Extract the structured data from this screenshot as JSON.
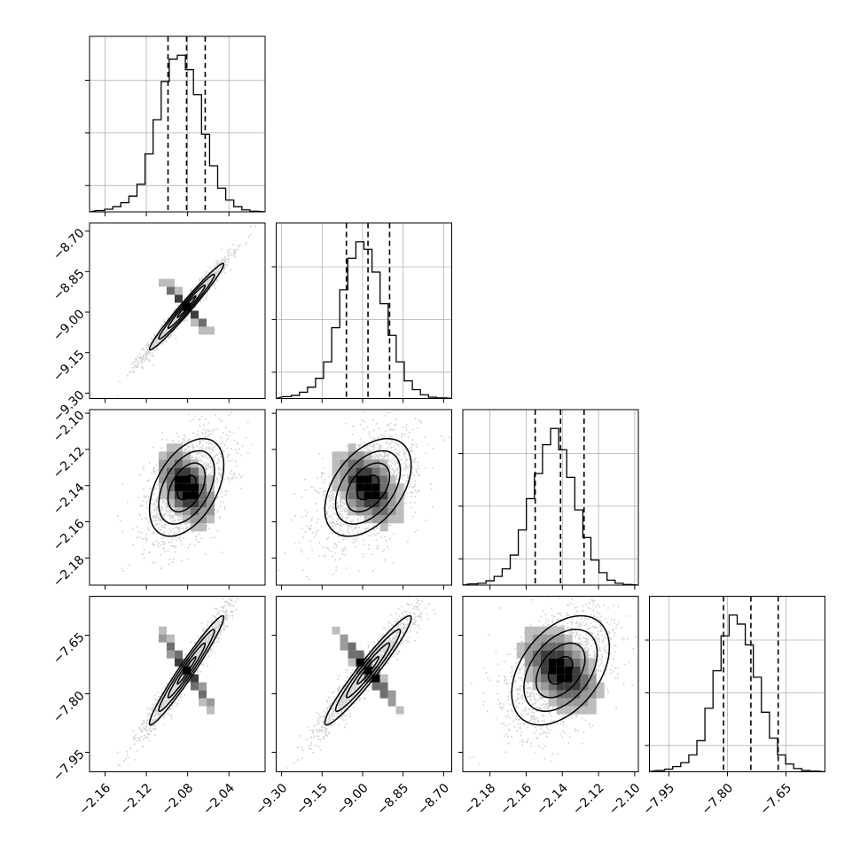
{
  "chart_data": {
    "type": "corner",
    "parameters": [
      {
        "ticks": [
          -2.16,
          -2.12,
          -2.08,
          -2.04
        ],
        "tick_labels": [
          "−2.16",
          "−2.12",
          "−2.08",
          "−2.04"
        ],
        "range": [
          -2.175,
          -2.005
        ],
        "median": -2.081,
        "q16": -2.099,
        "q84": -2.063,
        "sigma": 0.018
      },
      {
        "ticks": [
          -9.3,
          -9.15,
          -9.0,
          -8.85,
          -8.7
        ],
        "tick_labels": [
          "−9.30",
          "−9.15",
          "−9.00",
          "−8.85",
          "−8.70"
        ],
        "range": [
          -9.32,
          -8.67
        ],
        "median": -8.98,
        "q16": -9.06,
        "q84": -8.9,
        "sigma": 0.08
      },
      {
        "ticks": [
          -2.18,
          -2.16,
          -2.14,
          -2.12,
          -2.1
        ],
        "tick_labels": [
          "−2.18",
          "−2.16",
          "−2.14",
          "−2.12",
          "−2.10"
        ],
        "range": [
          -2.195,
          -2.098
        ],
        "median": -2.141,
        "q16": -2.155,
        "q84": -2.128,
        "sigma": 0.0135
      },
      {
        "ticks": [
          -7.95,
          -7.8,
          -7.65
        ],
        "tick_labels": [
          "−7.95",
          "−7.80",
          "−7.65"
        ],
        "range": [
          -8.0,
          -7.55
        ],
        "median": -7.74,
        "q16": -7.81,
        "q84": -7.67,
        "sigma": 0.07
      }
    ],
    "correlations": [
      [
        1,
        0.98,
        0.45,
        0.97
      ],
      [
        0.98,
        1,
        0.45,
        0.96
      ],
      [
        0.45,
        0.45,
        1,
        0.42
      ],
      [
        0.97,
        0.96,
        0.42,
        1
      ]
    ],
    "histogram_counts": [
      [
        2,
        4,
        8,
        14,
        24,
        42,
        88,
        140,
        198,
        232,
        238,
        216,
        178,
        118,
        70,
        36,
        18,
        8,
        3,
        1
      ],
      [
        3,
        5,
        10,
        18,
        32,
        58,
        112,
        172,
        222,
        248,
        236,
        200,
        150,
        100,
        58,
        28,
        14,
        6,
        2,
        1
      ],
      [
        2,
        3,
        7,
        14,
        26,
        48,
        88,
        138,
        178,
        224,
        250,
        216,
        172,
        120,
        76,
        40,
        20,
        8,
        3,
        1
      ],
      [
        2,
        4,
        8,
        14,
        26,
        48,
        98,
        156,
        210,
        242,
        228,
        196,
        146,
        92,
        52,
        26,
        12,
        5,
        2,
        1
      ]
    ],
    "xlabels": [
      "",
      "",
      "",
      ""
    ],
    "ylabels": [
      "",
      "",
      "",
      ""
    ],
    "grid": true,
    "colors": {
      "line": "#000000",
      "grid": "#b0b0b0",
      "scatter": "#888888"
    }
  }
}
